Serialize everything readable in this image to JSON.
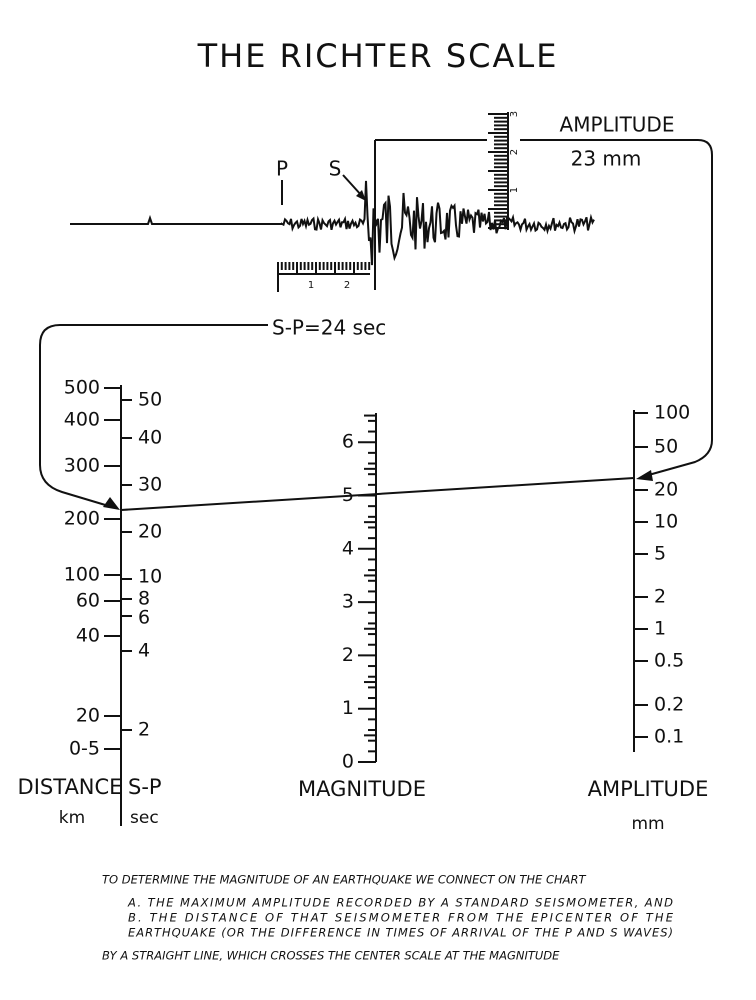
{
  "title": "THE RICHTER SCALE",
  "seismogram": {
    "p_label": "P",
    "s_label": "S",
    "amplitude_label": "AMPLITUDE",
    "amplitude_value": "23 mm",
    "sp_label": "S-P=24 sec",
    "vertical_ruler": [
      "1",
      "2",
      "3"
    ],
    "horizontal_ruler": [
      "1",
      "2"
    ]
  },
  "scales": {
    "distance": {
      "title": "DISTANCE",
      "unit": "km",
      "labels": [
        "500",
        "400",
        "300",
        "200",
        "100",
        "60",
        "40",
        "20",
        "0-5"
      ]
    },
    "sp": {
      "title": "S-P",
      "unit": "sec",
      "labels": [
        "50",
        "40",
        "30",
        "20",
        "10",
        "8",
        "6",
        "4",
        "2"
      ]
    },
    "magnitude": {
      "title": "MAGNITUDE",
      "labels": [
        "0",
        "1",
        "2",
        "3",
        "4",
        "5",
        "6"
      ]
    },
    "amplitude": {
      "title": "AMPLITUDE",
      "unit": "mm",
      "labels": [
        "100",
        "50",
        "20",
        "10",
        "5",
        "2",
        "1",
        "0.5",
        "0.2",
        "0.1"
      ]
    }
  },
  "caption": {
    "lines": [
      "TO DETERMINE THE MAGNITUDE OF AN EARTHQUAKE WE CONNECT ON THE CHART",
      "A.  THE MAXIMUM AMPLITUDE RECORDED BY A STANDARD SEISMOMETER, AND",
      "B.  THE DISTANCE OF THAT SEISMOMETER FROM THE EPICENTER OF THE",
      "EARTHQUAKE (OR THE DIFFERENCE IN TIMES OF ARRIVAL OF THE P AND S WAVES)",
      "BY A STRAIGHT LINE, WHICH CROSSES THE CENTER SCALE AT THE MAGNITUDE"
    ]
  }
}
